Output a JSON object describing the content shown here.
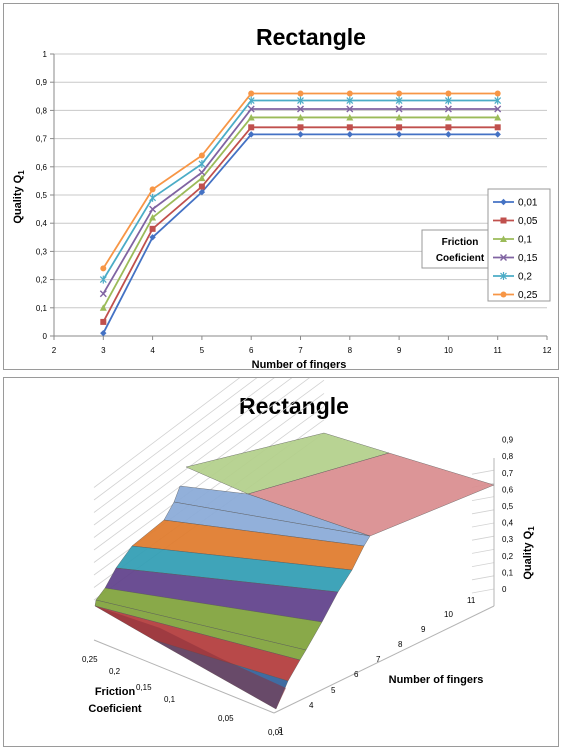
{
  "chart_data": [
    {
      "type": "line",
      "title": "Rectangle",
      "xlabel": "Number of fingers",
      "ylabel_main": "Quality Q",
      "ylabel_sub": "1",
      "xlim": [
        2,
        12
      ],
      "ylim": [
        0,
        1
      ],
      "x_ticks": [
        2,
        3,
        4,
        5,
        6,
        7,
        8,
        9,
        10,
        11,
        12
      ],
      "y_ticks": [
        "0",
        "0,1",
        "0,2",
        "0,3",
        "0,4",
        "0,5",
        "0,6",
        "0,7",
        "0,8",
        "0,9",
        "1"
      ],
      "legend_title": [
        "Friction",
        "Coeficient"
      ],
      "legend_position": "right",
      "x": [
        3,
        4,
        5,
        6,
        7,
        8,
        9,
        10,
        11
      ],
      "series": [
        {
          "name": "0,01",
          "color": "#4472c4",
          "marker": "diamond",
          "values": [
            0.01,
            0.35,
            0.51,
            0.715,
            0.715,
            0.715,
            0.715,
            0.715,
            0.715
          ]
        },
        {
          "name": "0,05",
          "color": "#c0504d",
          "marker": "square",
          "values": [
            0.05,
            0.38,
            0.53,
            0.74,
            0.74,
            0.74,
            0.74,
            0.74,
            0.74
          ]
        },
        {
          "name": "0,1",
          "color": "#9bbb59",
          "marker": "triangle",
          "values": [
            0.1,
            0.42,
            0.56,
            0.775,
            0.775,
            0.775,
            0.775,
            0.775,
            0.775
          ]
        },
        {
          "name": "0,15",
          "color": "#8064a2",
          "marker": "x",
          "values": [
            0.15,
            0.45,
            0.58,
            0.805,
            0.805,
            0.805,
            0.805,
            0.805,
            0.805
          ]
        },
        {
          "name": "0,2",
          "color": "#4bacc6",
          "marker": "star",
          "values": [
            0.2,
            0.49,
            0.61,
            0.835,
            0.835,
            0.835,
            0.835,
            0.835,
            0.835
          ]
        },
        {
          "name": "0,25",
          "color": "#f79646",
          "marker": "circle",
          "values": [
            0.24,
            0.52,
            0.64,
            0.86,
            0.86,
            0.86,
            0.86,
            0.86,
            0.86
          ]
        }
      ]
    },
    {
      "type": "surface",
      "title": "Rectangle",
      "xlabel": "Number of fingers",
      "ylabel": [
        "Friction",
        "Coeficient"
      ],
      "zlabel_main": "Quality Q",
      "zlabel_sub": "1",
      "x_ticks": [
        "4",
        "5",
        "6",
        "7",
        "8",
        "9",
        "10",
        "11",
        "3"
      ],
      "y_ticks": [
        "0,25",
        "0,2",
        "0,15",
        "0,1",
        "0,05",
        "0,01"
      ],
      "z_ticks": [
        "0",
        "0,1",
        "0,2",
        "0,3",
        "0,4",
        "0,5",
        "0,6",
        "0,7",
        "0,8",
        "0,9"
      ],
      "band_colors": [
        "#2f5f9a",
        "#b23a3a",
        "#7fa23a",
        "#5e3f8a",
        "#2f9cb3",
        "#e07a2a",
        "#89a9d7",
        "#d98c8e",
        "#b2cf8a"
      ]
    }
  ]
}
